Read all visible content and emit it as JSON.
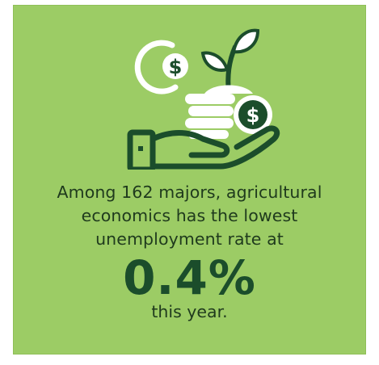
{
  "statement": {
    "line1": "Among 162 majors, agricultural",
    "line2": "economics has the lowest",
    "line3": "unemployment rate at"
  },
  "stat": {
    "value": "0.4%"
  },
  "suffix": "this year.",
  "icons": {
    "illustration": "hand-holding-coins-with-seedling-icon",
    "coin_symbol": "$"
  },
  "colors": {
    "background": "#9ccc65",
    "icon_dark": "#1b4d2b",
    "icon_light": "#ffffff",
    "text": "#1f3a1d"
  }
}
